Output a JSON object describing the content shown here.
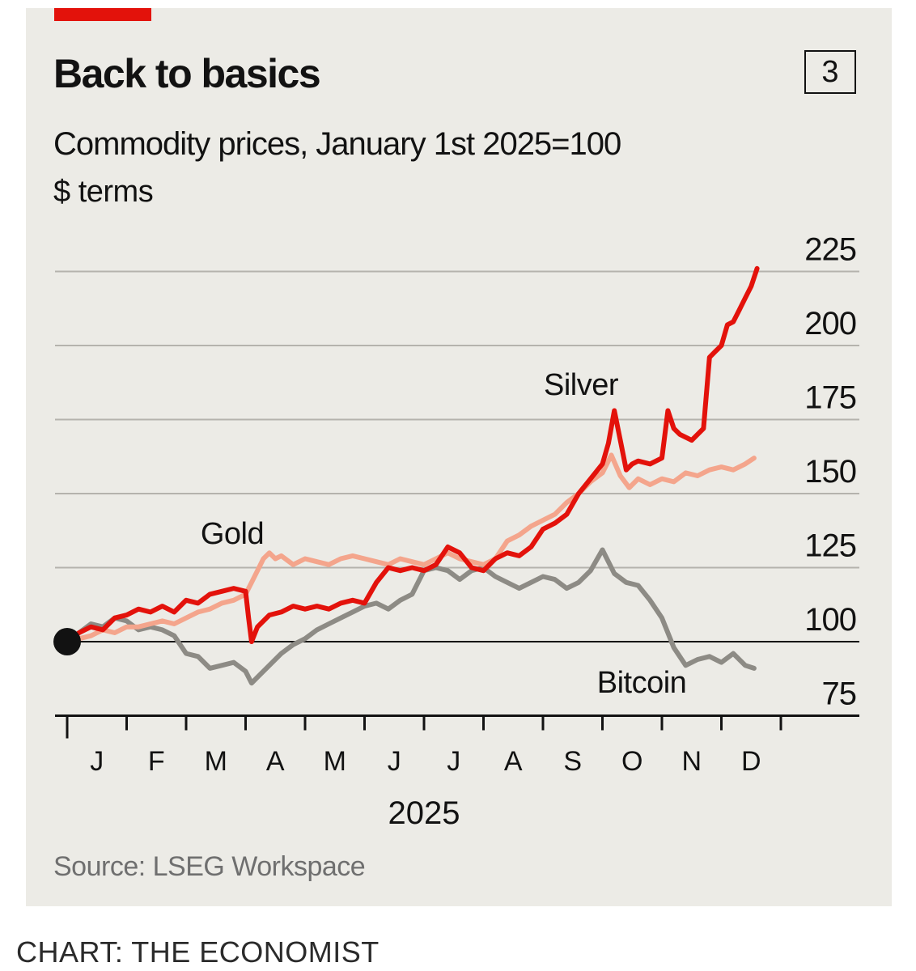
{
  "header": {
    "title": "Back to basics",
    "chart_number": "3",
    "subtitle": "Commodity prices, January 1st 2025=100",
    "units": "$ terms"
  },
  "footer": {
    "source": "Source: LSEG Workspace",
    "credit": "CHART: THE ECONOMIST"
  },
  "colors": {
    "silver": "#e3120b",
    "gold": "#f4a58c",
    "bitcoin": "#8d8b85",
    "grid": "#b5b3ad",
    "baseline": "#121212",
    "accent": "#e3120b"
  },
  "chart_data": {
    "type": "line",
    "title": "Back to basics",
    "subtitle": "Commodity prices, January 1st 2025=100",
    "ylabel": "",
    "xlabel": "2025",
    "ylim": [
      75,
      225
    ],
    "xlim": [
      -0.05,
      11.7
    ],
    "yticks": [
      225,
      200,
      175,
      150,
      125,
      100,
      75
    ],
    "baseline": 100,
    "grid": true,
    "y_axis_side": "right",
    "x_axis_year": "2025",
    "months": [
      "J",
      "F",
      "M",
      "A",
      "M",
      "J",
      "J",
      "A",
      "S",
      "O",
      "N",
      "D"
    ],
    "start_marker_value": 100,
    "series": [
      {
        "name": "Gold",
        "key": "gold",
        "x": [
          0,
          0.2,
          0.4,
          0.6,
          0.8,
          1.0,
          1.2,
          1.4,
          1.6,
          1.8,
          2.0,
          2.2,
          2.4,
          2.6,
          2.8,
          3.0,
          3.1,
          3.2,
          3.3,
          3.4,
          3.5,
          3.6,
          3.8,
          4.0,
          4.2,
          4.4,
          4.6,
          4.8,
          5.0,
          5.2,
          5.4,
          5.6,
          5.8,
          6.0,
          6.2,
          6.4,
          6.6,
          6.8,
          7.0,
          7.2,
          7.4,
          7.6,
          7.8,
          8.0,
          8.2,
          8.4,
          8.6,
          8.8,
          9.0,
          9.15,
          9.3,
          9.45,
          9.6,
          9.8,
          10.0,
          10.2,
          10.4,
          10.6,
          10.8,
          11.0,
          11.2,
          11.4,
          11.55
        ],
        "values": [
          100,
          101,
          102,
          104,
          103,
          105,
          105,
          106,
          107,
          106,
          108,
          110,
          111,
          113,
          114,
          116,
          120,
          124,
          128,
          130,
          128,
          129,
          126,
          128,
          127,
          126,
          128,
          129,
          128,
          127,
          126,
          128,
          127,
          126,
          128,
          130,
          128,
          127,
          126,
          128,
          134,
          136,
          139,
          141,
          143,
          147,
          150,
          154,
          157,
          163,
          156,
          152,
          155,
          153,
          155,
          154,
          157,
          156,
          158,
          159,
          158,
          160,
          162
        ]
      },
      {
        "name": "Silver",
        "key": "silver",
        "x": [
          0,
          0.2,
          0.4,
          0.6,
          0.8,
          1.0,
          1.2,
          1.4,
          1.6,
          1.8,
          2.0,
          2.2,
          2.4,
          2.6,
          2.8,
          3.0,
          3.05,
          3.1,
          3.2,
          3.4,
          3.6,
          3.8,
          4.0,
          4.2,
          4.4,
          4.6,
          4.8,
          5.0,
          5.2,
          5.4,
          5.6,
          5.8,
          6.0,
          6.2,
          6.4,
          6.6,
          6.8,
          7.0,
          7.2,
          7.4,
          7.6,
          7.8,
          8.0,
          8.2,
          8.4,
          8.6,
          8.8,
          9.0,
          9.1,
          9.2,
          9.3,
          9.4,
          9.5,
          9.6,
          9.8,
          10.0,
          10.1,
          10.2,
          10.3,
          10.5,
          10.7,
          10.8,
          10.9,
          11.0,
          11.1,
          11.2,
          11.3,
          11.4,
          11.5,
          11.6
        ],
        "values": [
          100,
          103,
          105,
          104,
          108,
          109,
          111,
          110,
          112,
          110,
          114,
          113,
          116,
          117,
          118,
          117,
          108,
          100,
          105,
          109,
          110,
          112,
          111,
          112,
          111,
          113,
          114,
          113,
          120,
          125,
          124,
          125,
          124,
          126,
          132,
          130,
          125,
          124,
          128,
          130,
          129,
          132,
          138,
          140,
          143,
          150,
          155,
          160,
          167,
          178,
          168,
          158,
          160,
          161,
          160,
          162,
          178,
          172,
          170,
          168,
          172,
          196,
          198,
          200,
          207,
          208,
          212,
          216,
          220,
          226
        ]
      },
      {
        "name": "Bitcoin",
        "key": "bitcoin",
        "x": [
          0,
          0.2,
          0.4,
          0.6,
          0.8,
          1.0,
          1.2,
          1.4,
          1.6,
          1.8,
          2.0,
          2.2,
          2.4,
          2.6,
          2.8,
          3.0,
          3.1,
          3.2,
          3.4,
          3.6,
          3.8,
          4.0,
          4.2,
          4.4,
          4.6,
          4.8,
          5.0,
          5.2,
          5.4,
          5.6,
          5.8,
          6.0,
          6.2,
          6.4,
          6.6,
          6.8,
          7.0,
          7.2,
          7.4,
          7.6,
          7.8,
          8.0,
          8.2,
          8.4,
          8.6,
          8.8,
          9.0,
          9.2,
          9.4,
          9.6,
          9.8,
          10.0,
          10.2,
          10.4,
          10.6,
          10.8,
          11.0,
          11.2,
          11.4,
          11.55
        ],
        "values": [
          100,
          103,
          106,
          105,
          108,
          107,
          104,
          105,
          104,
          102,
          96,
          95,
          91,
          92,
          93,
          90,
          86,
          88,
          92,
          96,
          99,
          101,
          104,
          106,
          108,
          110,
          112,
          113,
          111,
          114,
          116,
          124,
          125,
          124,
          121,
          124,
          125,
          122,
          120,
          118,
          120,
          122,
          121,
          118,
          120,
          124,
          131,
          123,
          120,
          119,
          114,
          108,
          98,
          92,
          94,
          95,
          93,
          96,
          92,
          91
        ]
      }
    ],
    "annotations": [
      {
        "text": "Silver",
        "series": "silver"
      },
      {
        "text": "Gold",
        "series": "gold"
      },
      {
        "text": "Bitcoin",
        "series": "bitcoin"
      }
    ]
  }
}
